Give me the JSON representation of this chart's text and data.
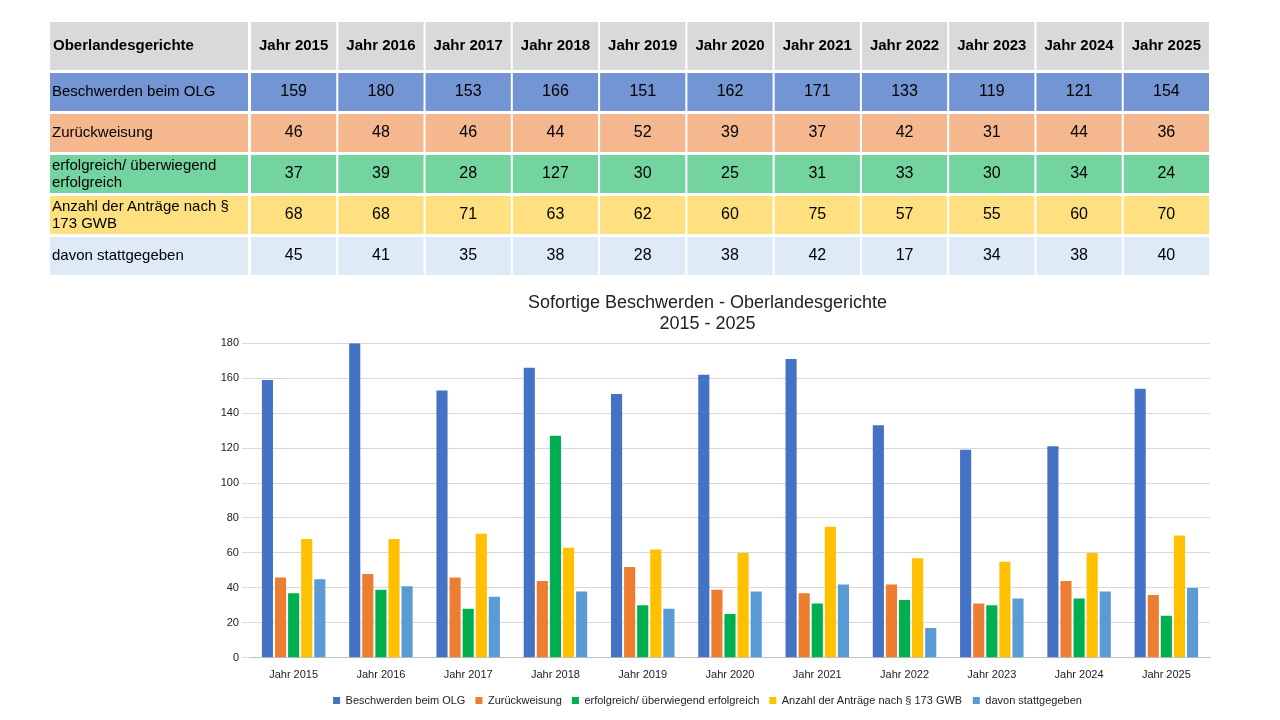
{
  "chart_data": {
    "type": "bar",
    "title": "Sofortige Beschwerden - Oberlandesgerichte",
    "subtitle": "2015 - 2025",
    "annotations": [
      "Oberlandesgerichte"
    ],
    "categories": [
      "Jahr 2015",
      "Jahr 2016",
      "Jahr 2017",
      "Jahr 2018",
      "Jahr 2019",
      "Jahr 2020",
      "Jahr 2021",
      "Jahr 2022",
      "Jahr 2023",
      "Jahr 2024",
      "Jahr 2025"
    ],
    "series": [
      {
        "name": "Beschwerden beim OLG",
        "color": "#4472c4",
        "values": [
          159,
          180,
          153,
          166,
          151,
          162,
          171,
          133,
          119,
          121,
          154
        ]
      },
      {
        "name": "Zurückweisung",
        "color": "#ed7d31",
        "values": [
          46,
          48,
          46,
          44,
          52,
          39,
          37,
          42,
          31,
          44,
          36
        ]
      },
      {
        "name": "erfolgreich/ überwiegend erfolgreich",
        "color": "#00b050",
        "values": [
          37,
          39,
          28,
          127,
          30,
          25,
          31,
          33,
          30,
          34,
          24
        ]
      },
      {
        "name": "Anzahl der Anträge nach § 173 GWB",
        "color": "#ffc000",
        "values": [
          68,
          68,
          71,
          63,
          62,
          60,
          75,
          57,
          55,
          60,
          70
        ]
      },
      {
        "name": "davon stattgegeben",
        "color": "#5b9bd5",
        "values": [
          45,
          41,
          35,
          38,
          28,
          38,
          42,
          17,
          34,
          38,
          40
        ]
      }
    ],
    "ylim": [
      0,
      180
    ],
    "yticks": [
      0,
      20,
      40,
      60,
      80,
      100,
      120,
      140,
      160,
      180
    ],
    "grid": "y",
    "legend": "bottom",
    "data_labels": true
  }
}
